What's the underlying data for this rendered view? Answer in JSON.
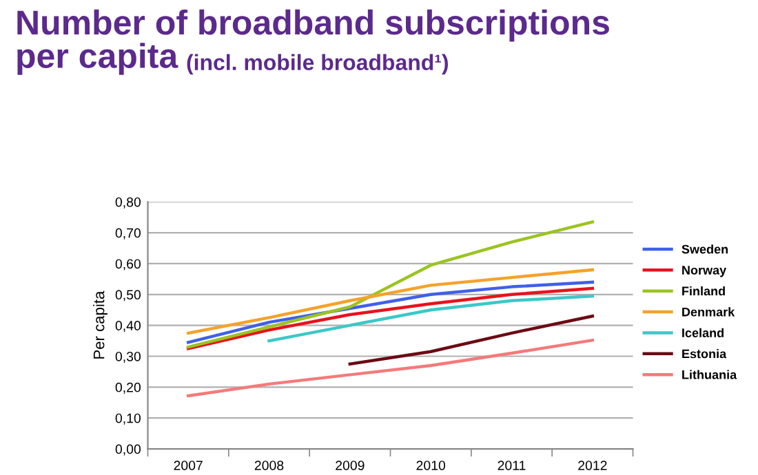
{
  "chart_data": {
    "type": "line",
    "title": "Number of broadband subscriptions\nper capita",
    "subtitle": "(incl. mobile broadband¹)",
    "ylabel": "Per capita",
    "categories": [
      "2007",
      "2008",
      "2009",
      "2010",
      "2011",
      "2012"
    ],
    "series": [
      {
        "name": "Sweden",
        "color": "#4060e8",
        "values": [
          0.345,
          0.41,
          0.455,
          0.5,
          0.525,
          0.54
        ]
      },
      {
        "name": "Norway",
        "color": "#e8121c",
        "values": [
          0.325,
          0.385,
          0.435,
          0.47,
          0.5,
          0.52
        ]
      },
      {
        "name": "Finland",
        "color": "#9ac421",
        "values": [
          0.33,
          0.395,
          0.46,
          0.595,
          0.67,
          0.735
        ]
      },
      {
        "name": "Denmark",
        "color": "#f5a22a",
        "values": [
          0.375,
          0.425,
          0.48,
          0.53,
          0.555,
          0.58
        ]
      },
      {
        "name": "Iceland",
        "color": "#3cc8c8",
        "values": [
          null,
          0.35,
          0.4,
          0.45,
          0.48,
          0.495
        ]
      },
      {
        "name": "Estonia",
        "color": "#6b0a14",
        "values": [
          null,
          null,
          0.275,
          0.315,
          0.375,
          0.43
        ]
      },
      {
        "name": "Lithuania",
        "color": "#f47a7a",
        "values": [
          0.172,
          0.21,
          0.24,
          0.27,
          0.31,
          0.352
        ]
      }
    ],
    "ylim": [
      0,
      0.8
    ],
    "yticks": [
      {
        "value": 0,
        "label": "0,00"
      },
      {
        "value": 0.1,
        "label": "0,10"
      },
      {
        "value": 0.2,
        "label": "0,20"
      },
      {
        "value": 0.3,
        "label": "0,30"
      },
      {
        "value": 0.4,
        "label": "0,40"
      },
      {
        "value": 0.5,
        "label": "0,50"
      },
      {
        "value": 0.6,
        "label": "0,60"
      },
      {
        "value": 0.7,
        "label": "0,70"
      },
      {
        "value": 0.8,
        "label": "0,80"
      }
    ],
    "grid": "y",
    "legend": "right",
    "marker": "none",
    "line_style": "solid"
  }
}
